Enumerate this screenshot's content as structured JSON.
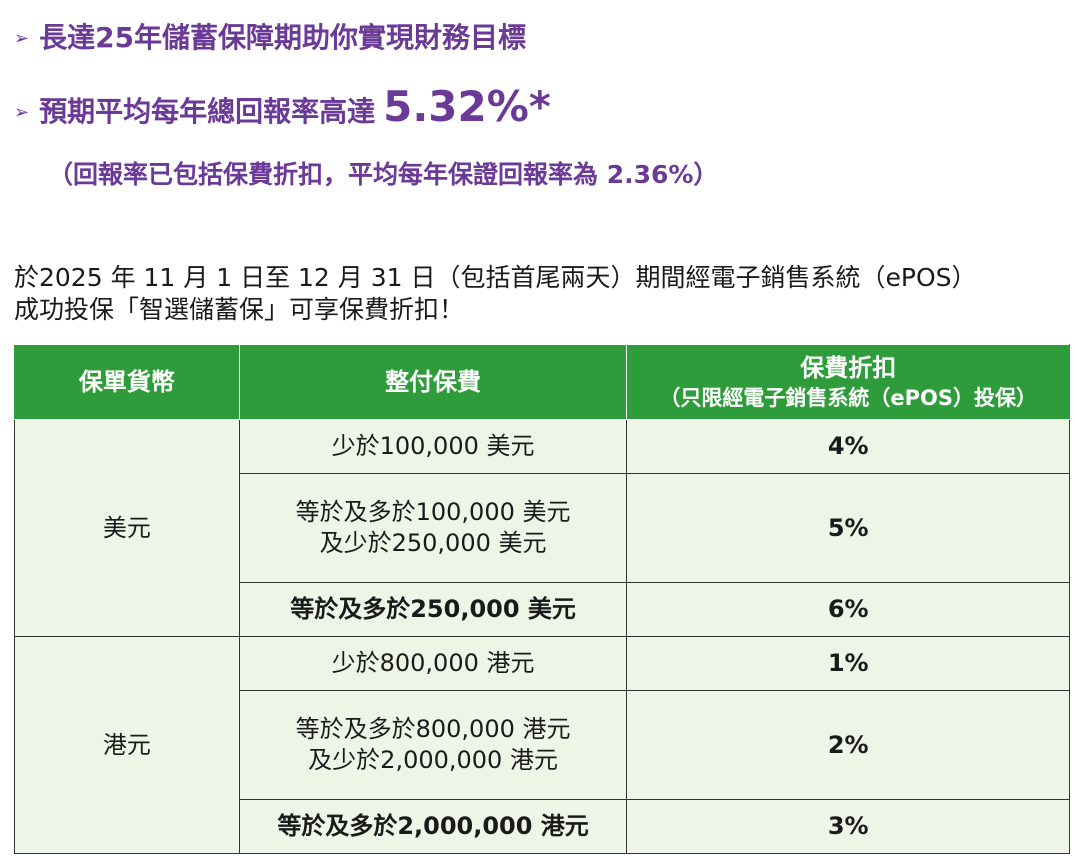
{
  "headline": {
    "arrow": "➢",
    "line1": "長達25年儲蓄保障期助你實現財務目標",
    "line2_text": "預期平均每年總回報率高達",
    "line2_rate": "5.32%*",
    "line3": "（回報率已包括保費折扣，平均每年保證回報率為 2.36%）"
  },
  "intro": {
    "line1": "於2025 年 11 月 1 日至 12 月 31 日（包括首尾兩天）期間經電子銷售系統（ePOS）",
    "line2": "成功投保「智選儲蓄保」可享保費折扣！"
  },
  "table": {
    "headers": {
      "currency": "保單貨幣",
      "premium": "整付保費",
      "discount": "保費折扣",
      "discount_sub": "（只限經電子銷售系統（ePOS）投保）"
    },
    "groups": [
      {
        "currency": "美元",
        "rows": [
          {
            "premium_line1": "少於100,000 美元",
            "premium_line2": "",
            "rate": "4%"
          },
          {
            "premium_line1": "等於及多於100,000 美元",
            "premium_line2": "及少於250,000 美元",
            "rate": "5%"
          },
          {
            "premium_line1": "等於及多於250,000 美元",
            "premium_line2": "",
            "rate": "6%"
          }
        ]
      },
      {
        "currency": "港元",
        "rows": [
          {
            "premium_line1": "少於800,000 港元",
            "premium_line2": "",
            "rate": "1%"
          },
          {
            "premium_line1": "等於及多於800,000 港元",
            "premium_line2": "及少於2,000,000 港元",
            "rate": "2%"
          },
          {
            "premium_line1": "等於及多於2,000,000 港元",
            "premium_line2": "",
            "rate": "3%"
          }
        ]
      }
    ]
  },
  "colors": {
    "accent_purple": "#6b3a96",
    "header_green": "#2e9c3a",
    "cell_green": "#edf6e6"
  }
}
